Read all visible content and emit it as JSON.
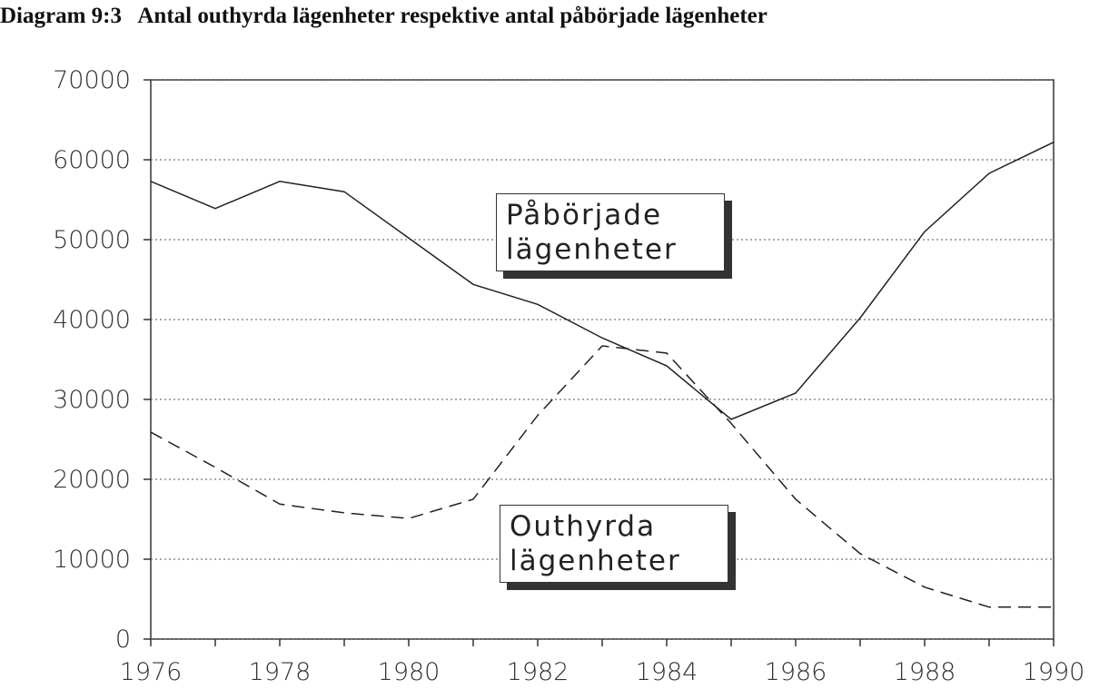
{
  "chart_data": {
    "type": "line",
    "title": "Diagram 9:3   Antal outhyrda lägenheter respektive antal påbörjade lägenheter",
    "x": [
      1976,
      1977,
      1978,
      1979,
      1980,
      1981,
      1982,
      1983,
      1984,
      1985,
      1986,
      1987,
      1988,
      1989,
      1990
    ],
    "series": [
      {
        "name": "Påbörjade lägenheter",
        "color": "#222222",
        "dash": "solid",
        "values": [
          57300,
          53900,
          57300,
          56000,
          50200,
          44400,
          41900,
          37700,
          34200,
          27500,
          30800,
          40200,
          51000,
          58300,
          62200
        ]
      },
      {
        "name": "Outhyrda lägenheter",
        "color": "#222222",
        "dash": "dashed",
        "values": [
          25900,
          21500,
          16900,
          15800,
          15100,
          17500,
          28000,
          36700,
          35800,
          27000,
          17500,
          10700,
          6500,
          4000,
          4000
        ]
      }
    ],
    "xlim": [
      1976,
      1990
    ],
    "xticks": [
      1976,
      1978,
      1980,
      1982,
      1984,
      1986,
      1988,
      1990
    ],
    "ylim": [
      0,
      70000
    ],
    "yticks": [
      0,
      10000,
      20000,
      30000,
      40000,
      50000,
      60000,
      70000
    ],
    "grid": true
  }
}
